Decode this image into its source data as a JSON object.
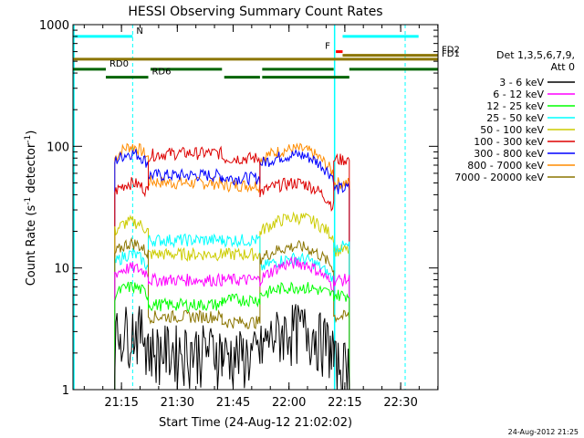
{
  "chart_data": {
    "type": "line",
    "title": "HESSI Observing Summary Count Rates",
    "xlabel": "Start Time (24-Aug-12 21:02:02)",
    "ylabel_main": "Count Rate (s",
    "ylabel_sup1": "-1",
    "ylabel_mid": " detector",
    "ylabel_sup2": "-1",
    "ylabel_end": ")",
    "yscale": "log",
    "ylim": [
      1,
      1000
    ],
    "xlim_minutes": [
      21.033,
      22.667
    ],
    "x_ticks": [
      {
        "label": "21:15",
        "t": 21.25
      },
      {
        "label": "21:30",
        "t": 21.5
      },
      {
        "label": "21:45",
        "t": 21.75
      },
      {
        "label": "22:00",
        "t": 22.0
      },
      {
        "label": "22:15",
        "t": 22.25
      },
      {
        "label": "22:30",
        "t": 22.5
      }
    ],
    "y_ticks": [
      {
        "label": "1",
        "v": 1
      },
      {
        "label": "10",
        "v": 10
      },
      {
        "label": "100",
        "v": 100
      },
      {
        "label": "1000",
        "v": 1000
      }
    ],
    "legend": {
      "title_line1": "Det 1,3,5,6,7,9,",
      "title_line2": "Att 0",
      "entries": [
        {
          "name": "3 - 6 keV",
          "color": "#000000"
        },
        {
          "name": "6 - 12 keV",
          "color": "#ff00ff"
        },
        {
          "name": "12 - 25 keV",
          "color": "#00ff00"
        },
        {
          "name": "25 - 50 keV",
          "color": "#00ffff"
        },
        {
          "name": "50 - 100 keV",
          "color": "#cccc00"
        },
        {
          "name": "100 - 300 keV",
          "color": "#dd0000"
        },
        {
          "name": "300 - 800 keV",
          "color": "#0000ff"
        },
        {
          "name": "800 - 7000 keV",
          "color": "#ff8c00"
        },
        {
          "name": "7000 - 20000 keV",
          "color": "#8b7500"
        }
      ]
    },
    "segments": [
      {
        "start": 21.22,
        "end": 21.37
      },
      {
        "start": 21.37,
        "end": 21.7
      },
      {
        "start": 21.7,
        "end": 21.87
      },
      {
        "start": 21.87,
        "end": 22.2
      },
      {
        "start": 22.2,
        "end": 22.27
      }
    ],
    "series": [
      {
        "name": "800 - 7000 keV",
        "color": "#ff8c00",
        "levels": [
          [
            80,
            100,
            80
          ],
          [
            52,
            50,
            50
          ],
          [
            48,
            48,
            48
          ],
          [
            80,
            95,
            60
          ],
          [
            50,
            50,
            50
          ]
        ]
      },
      {
        "name": "300 - 800 keV",
        "color": "#0000ff",
        "levels": [
          [
            75,
            88,
            72
          ],
          [
            58,
            58,
            58
          ],
          [
            55,
            55,
            55
          ],
          [
            72,
            85,
            55
          ],
          [
            45,
            45,
            45
          ]
        ]
      },
      {
        "name": "100 - 300 keV",
        "color": "#dd0000",
        "levels": [
          [
            42,
            50,
            42
          ],
          [
            85,
            88,
            88
          ],
          [
            80,
            80,
            80
          ],
          [
            42,
            50,
            32
          ],
          [
            78,
            78,
            78
          ]
        ]
      },
      {
        "name": "50 - 100 keV",
        "color": "#cccc00",
        "levels": [
          [
            20,
            24,
            20
          ],
          [
            13,
            13,
            13
          ],
          [
            13,
            13,
            13
          ],
          [
            20,
            26,
            18
          ],
          [
            14,
            14,
            14
          ]
        ]
      },
      {
        "name": "25 - 50 keV",
        "color": "#00ffff",
        "levels": [
          [
            11,
            13,
            10
          ],
          [
            17,
            17,
            17
          ],
          [
            17,
            17,
            17
          ],
          [
            10,
            12,
            8
          ],
          [
            15,
            15,
            15
          ]
        ]
      },
      {
        "name": "7000 - 20000 keV",
        "color": "#8b7500",
        "levels": [
          [
            13,
            16,
            13
          ],
          [
            4,
            4,
            4
          ],
          [
            3.6,
            3.6,
            3.6
          ],
          [
            12,
            15,
            10
          ],
          [
            4,
            4,
            4
          ]
        ]
      },
      {
        "name": "6 - 12 keV",
        "color": "#ff00ff",
        "levels": [
          [
            9,
            10,
            9
          ],
          [
            8,
            8,
            8
          ],
          [
            8,
            8,
            8
          ],
          [
            8,
            11,
            7
          ],
          [
            8,
            8,
            8
          ]
        ]
      },
      {
        "name": "12 - 25 keV",
        "color": "#00ff00",
        "levels": [
          [
            6,
            7,
            6
          ],
          [
            5,
            5,
            5
          ],
          [
            5.5,
            5.5,
            5.5
          ],
          [
            6,
            7,
            6
          ],
          [
            6,
            6,
            6
          ]
        ]
      },
      {
        "name": "3 - 6 keV",
        "color": "#000000",
        "levels": [
          [
            2.5,
            3,
            2.5
          ],
          [
            2,
            2,
            2
          ],
          [
            1.8,
            1.8,
            1.8
          ],
          [
            2,
            3,
            2
          ],
          [
            1.5,
            1.5,
            1.5
          ]
        ]
      }
    ],
    "bars": [
      {
        "label": "N",
        "color": "#00ffff",
        "value": 800,
        "ranges": [
          [
            21.033,
            21.3
          ],
          [
            22.24,
            22.58
          ]
        ]
      },
      {
        "label": "F",
        "color": "#ff0000",
        "value": 600,
        "ranges": [
          [
            22.21,
            22.24
          ]
        ]
      },
      {
        "label": "FD1",
        "color": "#8b7500",
        "value": 520,
        "ranges": [
          [
            21.033,
            22.667
          ]
        ]
      },
      {
        "label": "FD2",
        "color": "#8b7500",
        "value": 560,
        "ranges": [
          [
            22.24,
            22.667
          ]
        ]
      },
      {
        "label": "RD0",
        "color": "#006400",
        "value": 430,
        "ranges": [
          [
            21.033,
            21.18
          ],
          [
            21.38,
            21.7
          ],
          [
            21.88,
            22.2
          ],
          [
            22.27,
            22.667
          ]
        ]
      },
      {
        "label": "RD6",
        "color": "#006400",
        "value": 370,
        "ranges": [
          [
            21.18,
            21.37
          ],
          [
            21.71,
            21.87
          ],
          [
            21.88,
            22.27
          ]
        ]
      }
    ],
    "cyan_vlines_solid": [
      21.033,
      22.2
    ],
    "cyan_vlines_dashed": [
      21.3,
      22.52
    ],
    "timestamp": "24-Aug-2012 21:25"
  }
}
